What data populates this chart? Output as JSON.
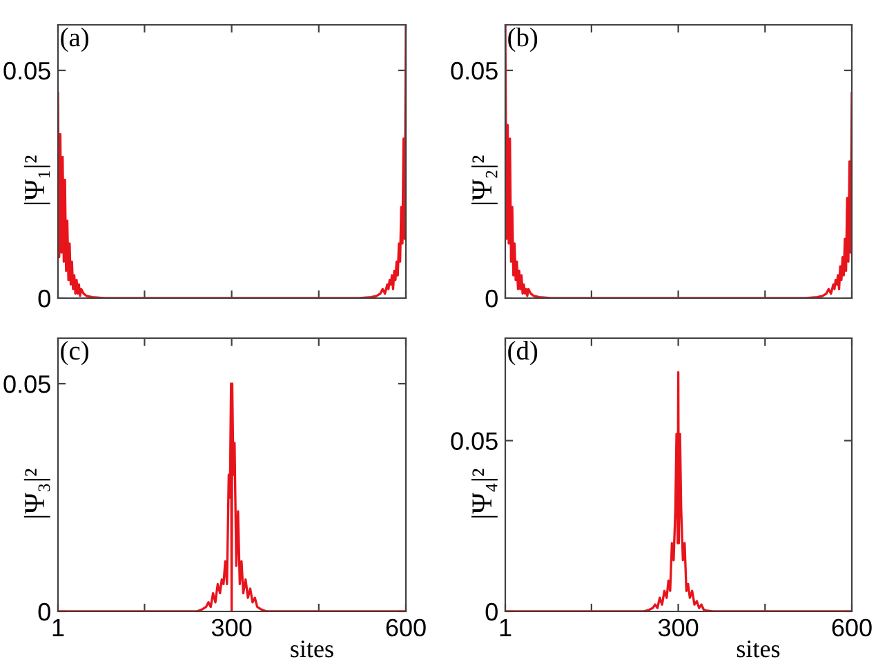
{
  "chart_data": [
    {
      "type": "line",
      "ylabel": "|Ψ₁|²",
      "annotations": [
        "(a)"
      ],
      "xlim": [
        1,
        600
      ],
      "ylim": [
        0,
        0.06
      ],
      "xticks": [
        {
          "value": 1,
          "label": null
        },
        {
          "value": 150,
          "label": null
        },
        {
          "value": 300,
          "label": null
        },
        {
          "value": 450,
          "label": null
        },
        {
          "value": 600,
          "label": null
        }
      ],
      "yticks": [
        0,
        0.05
      ],
      "tick_labels": "y",
      "grid": false,
      "series": [
        {
          "color": "#e8141c",
          "x": [
            1,
            3,
            5,
            7,
            9,
            11,
            13,
            15,
            17,
            19,
            21,
            23,
            25,
            27,
            29,
            31,
            33,
            35,
            37,
            39,
            41,
            45,
            50,
            60,
            80,
            150,
            300,
            450,
            520,
            540,
            550,
            556,
            560,
            564,
            568,
            570,
            572,
            574,
            576,
            578,
            580,
            582,
            584,
            586,
            588,
            590,
            592,
            594,
            596,
            598,
            600
          ],
          "values": [
            0.045,
            0.009,
            0.036,
            0.01,
            0.031,
            0.008,
            0.026,
            0.006,
            0.017,
            0.004,
            0.012,
            0.003,
            0.008,
            0.002,
            0.005,
            0.001,
            0.004,
            0.001,
            0.003,
            0.0005,
            0.002,
            0.001,
            0.0005,
            0.0002,
            0,
            0,
            0,
            0,
            0,
            0.0002,
            0.0005,
            0.001,
            0.002,
            0.001,
            0.003,
            0.002,
            0.004,
            0.003,
            0.005,
            0.002,
            0.006,
            0.004,
            0.008,
            0.005,
            0.012,
            0.008,
            0.02,
            0.012,
            0.035,
            0.013,
            0.06
          ]
        }
      ]
    },
    {
      "type": "line",
      "ylabel": "|Ψ₂|²",
      "annotations": [
        "(b)"
      ],
      "xlim": [
        1,
        600
      ],
      "ylim": [
        0,
        0.06
      ],
      "xticks": [
        {
          "value": 1,
          "label": null
        },
        {
          "value": 150,
          "label": null
        },
        {
          "value": 300,
          "label": null
        },
        {
          "value": 450,
          "label": null
        },
        {
          "value": 600,
          "label": null
        }
      ],
      "yticks": [
        0,
        0.05
      ],
      "tick_labels": "y",
      "grid": false,
      "series": [
        {
          "color": "#e8141c",
          "x": [
            1,
            3,
            5,
            7,
            9,
            11,
            13,
            15,
            17,
            19,
            21,
            23,
            25,
            27,
            29,
            31,
            33,
            35,
            37,
            39,
            41,
            45,
            50,
            60,
            80,
            150,
            300,
            450,
            520,
            540,
            550,
            556,
            560,
            564,
            568,
            570,
            572,
            574,
            576,
            578,
            580,
            582,
            584,
            586,
            588,
            590,
            592,
            594,
            596,
            598,
            600
          ],
          "values": [
            0.06,
            0.013,
            0.038,
            0.012,
            0.035,
            0.008,
            0.02,
            0.005,
            0.012,
            0.004,
            0.008,
            0.002,
            0.006,
            0.002,
            0.005,
            0.001,
            0.003,
            0.001,
            0.002,
            0.0005,
            0.002,
            0.001,
            0.0005,
            0.0002,
            0,
            0,
            0,
            0,
            0,
            0.0002,
            0.0005,
            0.001,
            0.002,
            0.001,
            0.003,
            0.002,
            0.004,
            0.003,
            0.005,
            0.002,
            0.007,
            0.004,
            0.009,
            0.005,
            0.013,
            0.006,
            0.022,
            0.008,
            0.03,
            0.01,
            0.045
          ]
        }
      ]
    },
    {
      "type": "line",
      "ylabel": "|Ψ₃|²",
      "xlabel": "sites",
      "annotations": [
        "(c)"
      ],
      "xlim": [
        1,
        600
      ],
      "ylim": [
        0,
        0.06
      ],
      "xticks": [
        1,
        {
          "value": 150,
          "label": null
        },
        300,
        {
          "value": 450,
          "label": null
        },
        600
      ],
      "yticks": [
        0,
        0.05
      ],
      "grid": false,
      "series": [
        {
          "color": "#e8141c",
          "x": [
            1,
            150,
            240,
            250,
            256,
            260,
            264,
            268,
            272,
            276,
            280,
            283,
            286,
            289,
            292,
            295,
            297,
            299,
            300,
            301,
            303,
            305,
            308,
            311,
            314,
            317,
            320,
            324,
            328,
            332,
            336,
            340,
            344,
            350,
            360,
            450,
            600
          ],
          "values": [
            0,
            0,
            0,
            0.0005,
            0.001,
            0.002,
            0.001,
            0.004,
            0.002,
            0.006,
            0.004,
            0.007,
            0.006,
            0.011,
            0.006,
            0.03,
            0.025,
            0.05,
            0,
            0.05,
            0.03,
            0.037,
            0.01,
            0.022,
            0.006,
            0.011,
            0.004,
            0.007,
            0.003,
            0.005,
            0.002,
            0.003,
            0.001,
            0.0005,
            0,
            0,
            0
          ]
        }
      ]
    },
    {
      "type": "line",
      "ylabel": "|Ψ₄|²",
      "xlabel": "sites",
      "annotations": [
        "(d)"
      ],
      "xlim": [
        1,
        600
      ],
      "ylim": [
        0,
        0.08
      ],
      "xticks": [
        1,
        {
          "value": 150,
          "label": null
        },
        300,
        {
          "value": 450,
          "label": null
        },
        600
      ],
      "yticks": [
        0,
        0.05
      ],
      "grid": false,
      "series": [
        {
          "color": "#e8141c",
          "x": [
            1,
            150,
            240,
            250,
            256,
            260,
            264,
            268,
            272,
            276,
            280,
            283,
            286,
            289,
            292,
            295,
            297,
            299,
            300,
            301,
            303,
            305,
            308,
            311,
            314,
            317,
            320,
            324,
            328,
            332,
            336,
            340,
            344,
            350,
            360,
            450,
            600
          ],
          "values": [
            0,
            0,
            0,
            0.0005,
            0.001,
            0.002,
            0.001,
            0.004,
            0.002,
            0.006,
            0.004,
            0.009,
            0.006,
            0.02,
            0.015,
            0.03,
            0.052,
            0.02,
            0.07,
            0.02,
            0.052,
            0.03,
            0.015,
            0.02,
            0.006,
            0.008,
            0.004,
            0.006,
            0.002,
            0.003,
            0.001,
            0.002,
            0.0005,
            0.0002,
            0,
            0,
            0
          ]
        }
      ]
    }
  ]
}
